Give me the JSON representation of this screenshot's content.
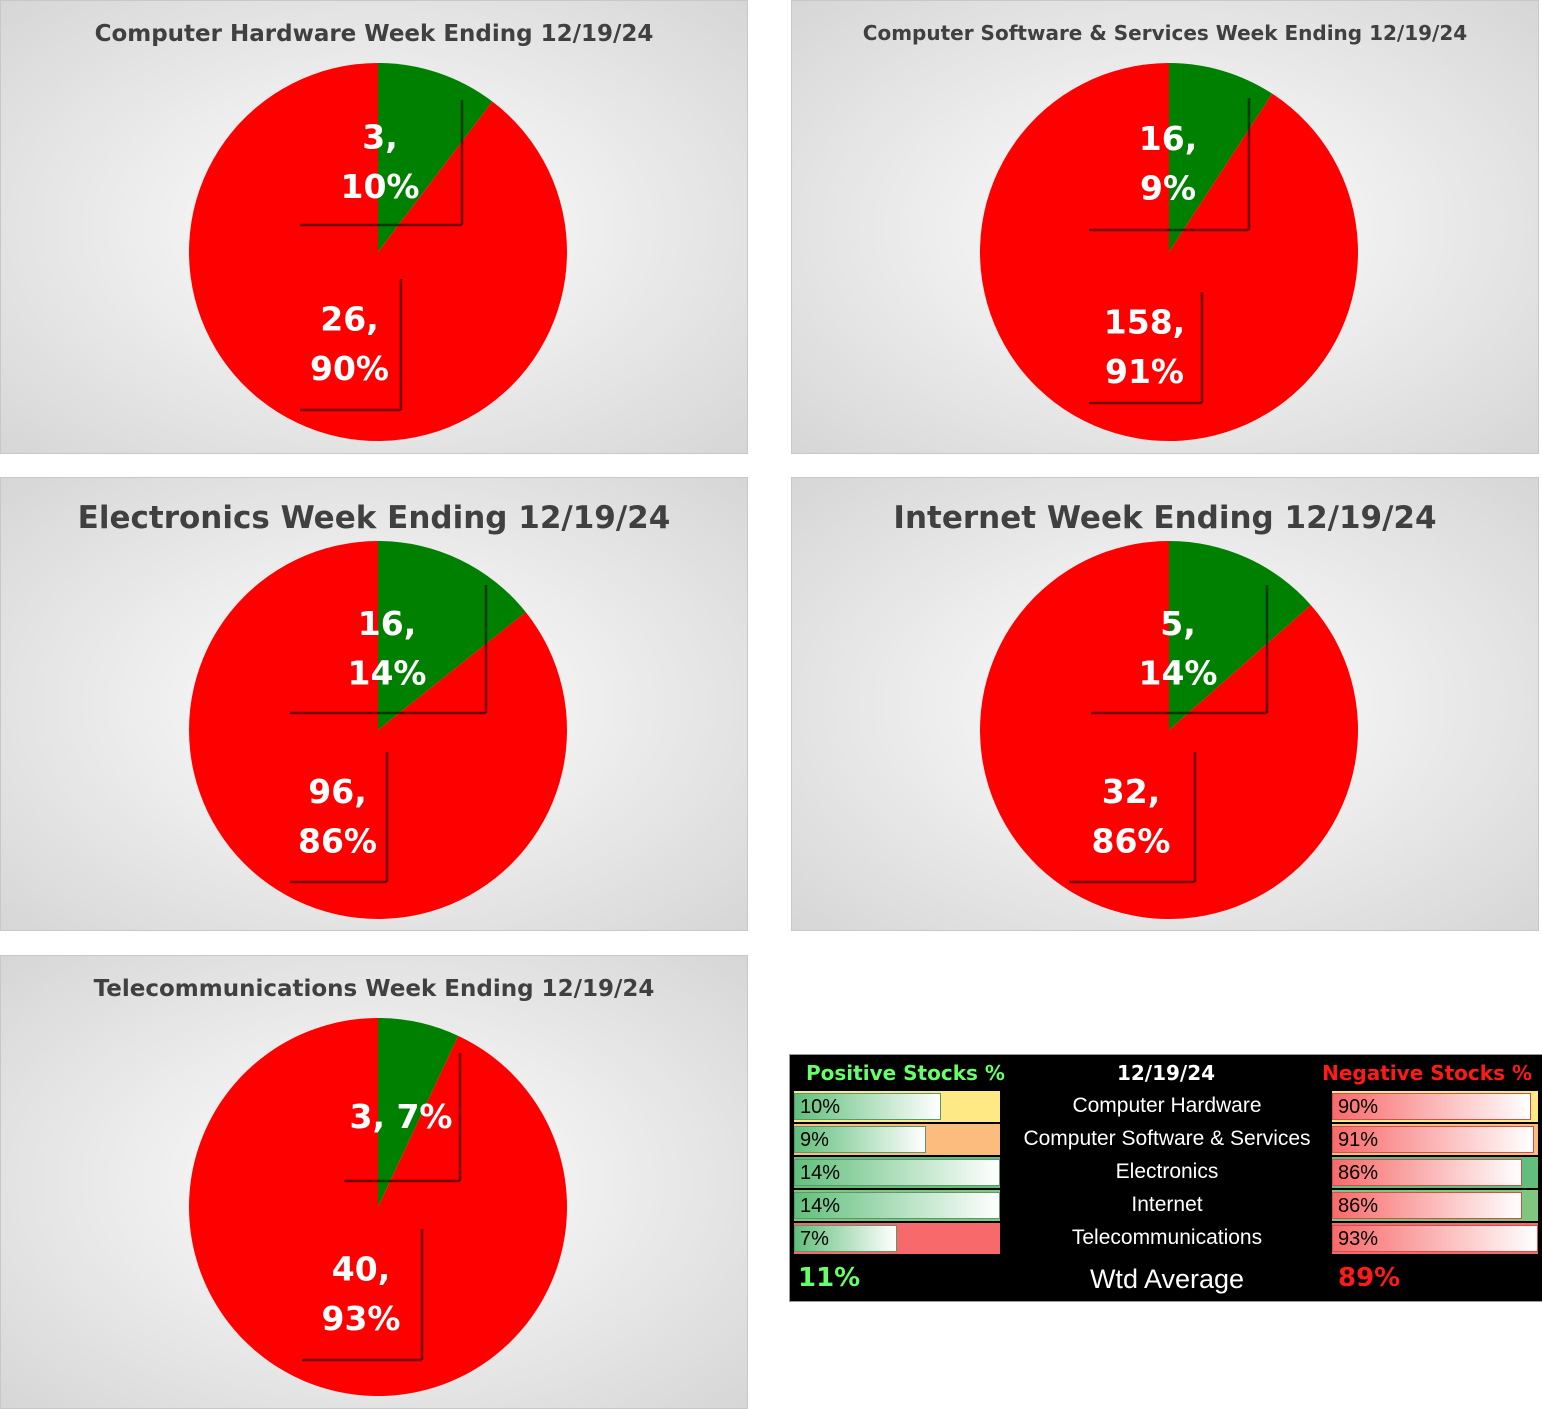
{
  "colors": {
    "positive": "#008000",
    "negative": "#ff0000"
  },
  "chart_data": [
    {
      "type": "pie",
      "title": "Computer Hardware Week Ending 12/19/24",
      "slices": [
        {
          "value": 3,
          "percent": "10%",
          "label": "3,\n10%"
        },
        {
          "value": 26,
          "percent": "90%",
          "label": "26,\n90%"
        }
      ]
    },
    {
      "type": "pie",
      "title": "Computer Software & Services Week Ending 12/19/24",
      "slices": [
        {
          "value": 16,
          "percent": "9%",
          "label": "16,\n9%"
        },
        {
          "value": 158,
          "percent": "91%",
          "label": "158,\n91%"
        }
      ]
    },
    {
      "type": "pie",
      "title": "Electronics Week Ending 12/19/24",
      "slices": [
        {
          "value": 16,
          "percent": "14%",
          "label": "16,\n14%"
        },
        {
          "value": 96,
          "percent": "86%",
          "label": "96,\n86%"
        }
      ]
    },
    {
      "type": "pie",
      "title": "Internet Week Ending 12/19/24",
      "slices": [
        {
          "value": 5,
          "percent": "14%",
          "label": "5,\n14%"
        },
        {
          "value": 32,
          "percent": "86%",
          "label": "32,\n86%"
        }
      ]
    },
    {
      "type": "pie",
      "title": "Telecommunications Week Ending 12/19/24",
      "slices": [
        {
          "value": 3,
          "percent": "7%",
          "label": "3, 7%"
        },
        {
          "value": 40,
          "percent": "93%",
          "label": "40,\n93%"
        }
      ]
    },
    {
      "type": "table",
      "columns": [
        "Positive Stocks %",
        "12/19/24",
        "Negative Stocks %"
      ],
      "rows": [
        {
          "category": "Computer Hardware",
          "positive": "10%",
          "negative": "90%",
          "pos_fraction": 0.1,
          "neg_fraction": 0.9,
          "pos_bg": "#ffe985",
          "neg_bg": "#ffe985"
        },
        {
          "category": "Computer Software & Services",
          "positive": "9%",
          "negative": "91%",
          "pos_fraction": 0.09,
          "neg_fraction": 0.91,
          "pos_bg": "#fbbc7d",
          "neg_bg": "#fbbc7d"
        },
        {
          "category": "Electronics",
          "positive": "14%",
          "negative": "86%",
          "pos_fraction": 0.14,
          "neg_fraction": 0.86,
          "pos_bg": "#63be7b",
          "neg_bg": "#63be7b"
        },
        {
          "category": "Internet",
          "positive": "14%",
          "negative": "86%",
          "pos_fraction": 0.14,
          "neg_fraction": 0.86,
          "pos_bg": "#7fc67f",
          "neg_bg": "#7fc67f"
        },
        {
          "category": "Telecommunications",
          "positive": "7%",
          "negative": "93%",
          "pos_fraction": 0.07,
          "neg_fraction": 0.93,
          "pos_bg": "#f8696b",
          "neg_bg": "#f8696b"
        }
      ],
      "average_label": "Wtd Average",
      "average_positive": "11%",
      "average_negative": "89%"
    }
  ]
}
